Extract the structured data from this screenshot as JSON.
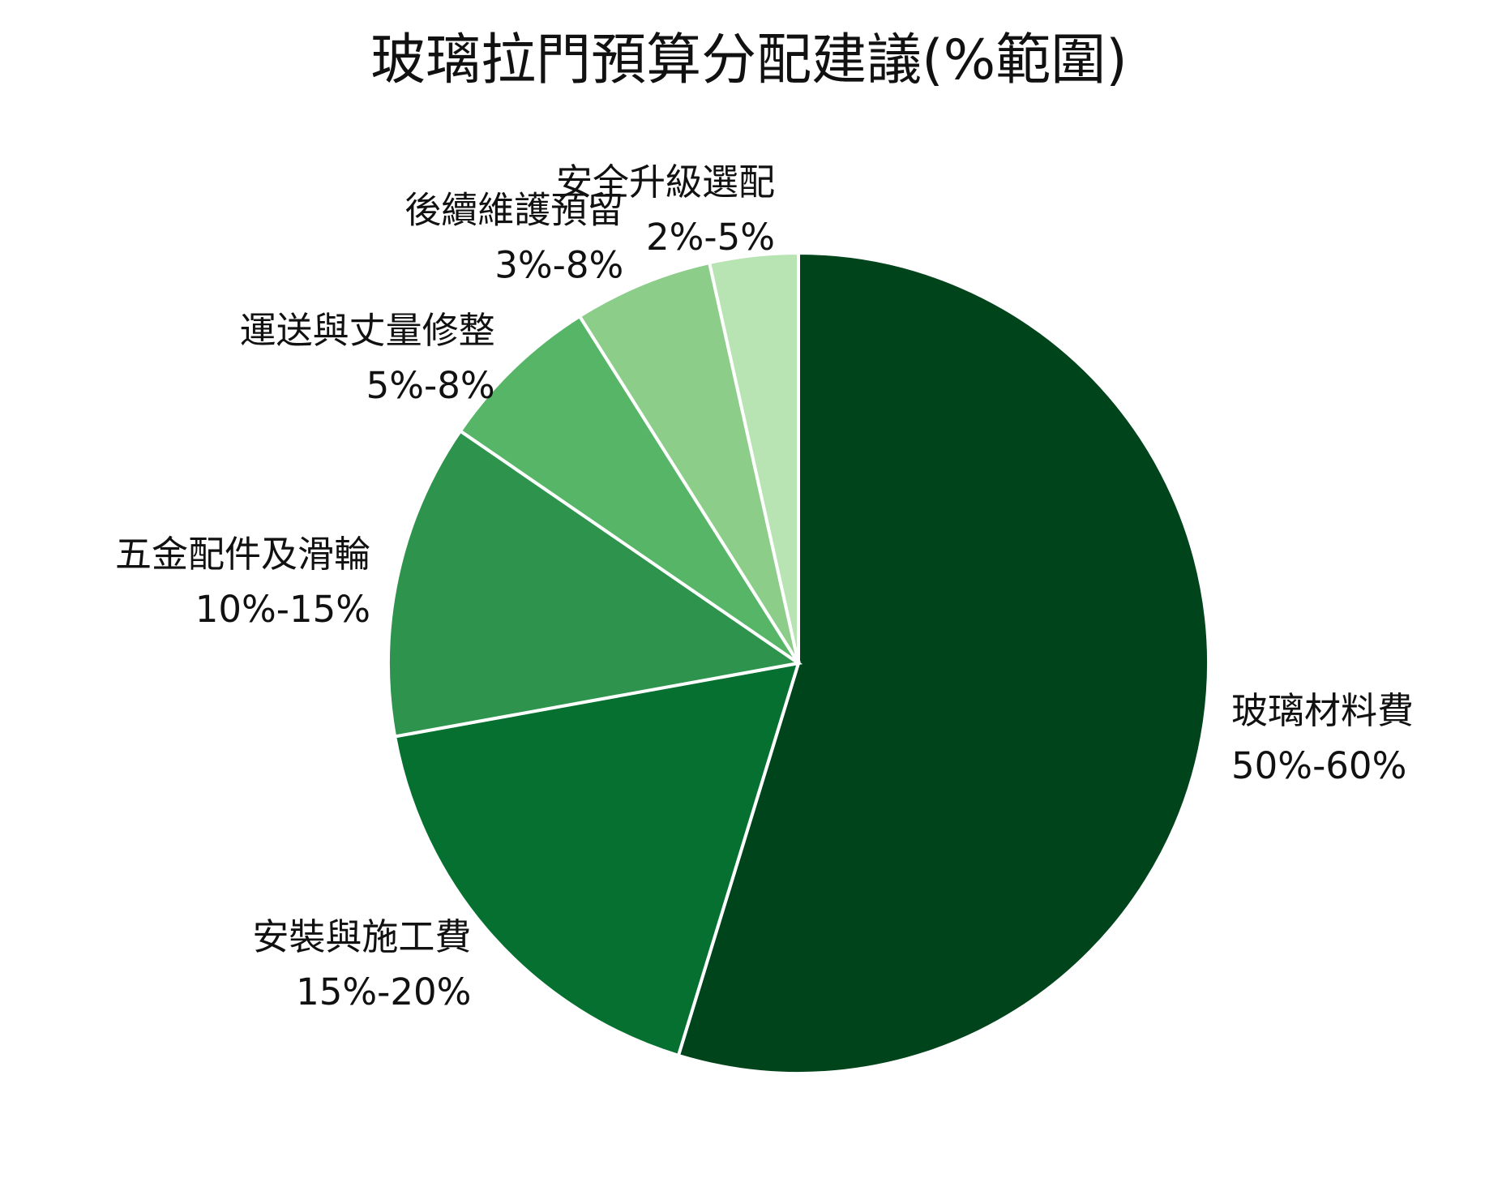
{
  "chart_data": {
    "type": "pie",
    "title": "玻璃拉門預算分配建議(%範圍)",
    "start_angle_deg": 90,
    "direction": "clockwise",
    "legend": "none",
    "slices": [
      {
        "name": "玻璃材料費",
        "range": "50%-60%",
        "value": 55.0,
        "color": "#00441b"
      },
      {
        "name": "安裝與施工費",
        "range": "15%-20%",
        "value": 17.5,
        "color": "#067030"
      },
      {
        "name": "五金配件及滑輪",
        "range": "10%-15%",
        "value": 12.5,
        "color": "#2e944d"
      },
      {
        "name": "運送與丈量修整",
        "range": "5%-8%",
        "value": 6.5,
        "color": "#56b566"
      },
      {
        "name": "後續維護預留",
        "range": "3%-8%",
        "value": 5.5,
        "color": "#8dcd8a"
      },
      {
        "name": "安全升級選配",
        "range": "2%-5%",
        "value": 3.5,
        "color": "#b8e3b2"
      }
    ]
  }
}
